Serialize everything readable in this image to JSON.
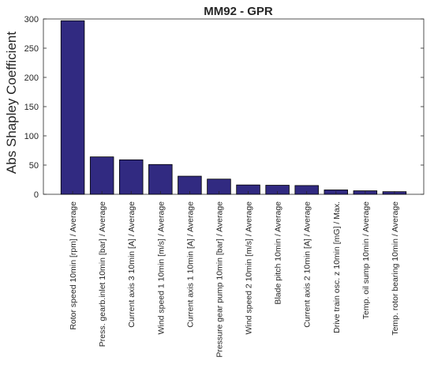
{
  "chart_data": {
    "type": "bar",
    "title": "MM92 - GPR",
    "xlabel": "",
    "ylabel": "Abs Shapley Coefficient",
    "ylim": [
      0,
      300
    ],
    "yticks": [
      0,
      50,
      100,
      150,
      200,
      250,
      300
    ],
    "grid": false,
    "bar_color": "#312a81",
    "categories": [
      "Rotor speed 10min [rpm] / Average",
      "Press. gearb.inlet 10min [bar] / Average",
      "Current axis 3 10min [A] / Average",
      "Wind speed 1 10min [m/s] / Average",
      "Current axis 1 10min [A] / Average",
      "Pressure gear pump 10min [bar] / Average",
      "Wind speed 2 10min [m/s] / Average",
      "Blade pitch 10min  / Average",
      "Current axis 2 10min [A] / Average",
      "Drive train osc. z 10min [mG] / Max.",
      "Temp. oil sump 10min  / Average",
      "Temp. rotor bearing 10min  / Average"
    ],
    "values": [
      297,
      64,
      59,
      51,
      31,
      26,
      16,
      15.5,
      15,
      7.5,
      6,
      4.5
    ]
  }
}
